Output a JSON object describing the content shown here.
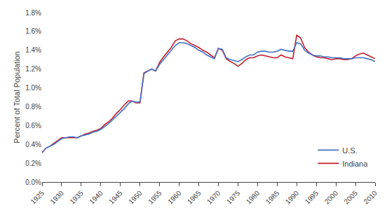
{
  "chart_data": {
    "type": "line",
    "x": [
      1925,
      1926,
      1927,
      1928,
      1929,
      1930,
      1931,
      1932,
      1933,
      1934,
      1935,
      1936,
      1937,
      1938,
      1939,
      1940,
      1941,
      1942,
      1943,
      1944,
      1945,
      1946,
      1947,
      1948,
      1949,
      1950,
      1951,
      1952,
      1953,
      1954,
      1955,
      1956,
      1957,
      1958,
      1959,
      1960,
      1961,
      1962,
      1963,
      1964,
      1965,
      1966,
      1967,
      1968,
      1969,
      1970,
      1971,
      1972,
      1973,
      1974,
      1975,
      1976,
      1977,
      1978,
      1979,
      1980,
      1981,
      1982,
      1983,
      1984,
      1985,
      1986,
      1987,
      1988,
      1989,
      1990,
      1991,
      1992,
      1993,
      1994,
      1995,
      1996,
      1997,
      1998,
      1999,
      2000,
      2001,
      2002,
      2003,
      2004,
      2005,
      2006,
      2007,
      2008,
      2009,
      2010
    ],
    "series": [
      {
        "name": "U.S.",
        "color": "#4472C4",
        "values": [
          0.0031,
          0.0036,
          0.0038,
          0.004,
          0.0043,
          0.0046,
          0.0047,
          0.0048,
          0.0048,
          0.0047,
          0.0049,
          0.005,
          0.0051,
          0.0053,
          0.0054,
          0.0056,
          0.0059,
          0.0062,
          0.0066,
          0.007,
          0.0074,
          0.0078,
          0.0083,
          0.0086,
          0.0085,
          0.0085,
          0.0115,
          0.0118,
          0.012,
          0.0118,
          0.0125,
          0.013,
          0.0135,
          0.014,
          0.0145,
          0.0148,
          0.0148,
          0.0147,
          0.0145,
          0.0143,
          0.014,
          0.0138,
          0.0135,
          0.0133,
          0.0131,
          0.0142,
          0.0141,
          0.0132,
          0.013,
          0.0129,
          0.0128,
          0.013,
          0.0133,
          0.0135,
          0.0135,
          0.0138,
          0.0139,
          0.0139,
          0.0138,
          0.0138,
          0.0139,
          0.0141,
          0.014,
          0.0139,
          0.0139,
          0.0148,
          0.0147,
          0.014,
          0.0137,
          0.0135,
          0.0134,
          0.0134,
          0.0133,
          0.0133,
          0.0132,
          0.0132,
          0.0132,
          0.0131,
          0.0131,
          0.0131,
          0.0132,
          0.0132,
          0.0132,
          0.0131,
          0.013,
          0.0128
        ]
      },
      {
        "name": "Indiana",
        "color": "#BE1E2D",
        "values": [
          0.0031,
          0.0036,
          0.0038,
          0.0041,
          0.0044,
          0.0047,
          0.0047,
          0.0047,
          0.0047,
          0.0047,
          0.0049,
          0.0051,
          0.0052,
          0.0054,
          0.0055,
          0.0057,
          0.0061,
          0.0064,
          0.0068,
          0.0073,
          0.0077,
          0.0082,
          0.0086,
          0.0086,
          0.0084,
          0.0084,
          0.0116,
          0.0118,
          0.012,
          0.0118,
          0.0127,
          0.0133,
          0.0138,
          0.0143,
          0.015,
          0.0152,
          0.0152,
          0.015,
          0.0147,
          0.0145,
          0.0143,
          0.014,
          0.0138,
          0.0135,
          0.0132,
          0.0142,
          0.014,
          0.0131,
          0.0128,
          0.0126,
          0.0123,
          0.0126,
          0.013,
          0.0132,
          0.0132,
          0.0134,
          0.0135,
          0.0134,
          0.0133,
          0.0132,
          0.0132,
          0.0135,
          0.0133,
          0.0132,
          0.0131,
          0.0156,
          0.0153,
          0.0143,
          0.0138,
          0.0135,
          0.0133,
          0.0132,
          0.0132,
          0.0131,
          0.013,
          0.0131,
          0.0131,
          0.013,
          0.013,
          0.0131,
          0.0134,
          0.0136,
          0.0137,
          0.0135,
          0.0133,
          0.0131
        ]
      }
    ],
    "ylabel": "Percent of Total Population",
    "xlim": [
      1925,
      2010
    ],
    "xticks": [
      1925,
      1930,
      1935,
      1940,
      1945,
      1950,
      1955,
      1960,
      1965,
      1970,
      1975,
      1980,
      1985,
      1990,
      1995,
      2000,
      2005,
      2010
    ],
    "ylim": [
      0.0,
      0.018
    ],
    "yticks": [
      {
        "value": 0.0,
        "label": "0.0%"
      },
      {
        "value": 0.002,
        "label": "0.2%"
      },
      {
        "value": 0.004,
        "label": "0.4%"
      },
      {
        "value": 0.006,
        "label": "0.6%"
      },
      {
        "value": 0.008,
        "label": "0.8%"
      },
      {
        "value": 0.01,
        "label": "1.0%"
      },
      {
        "value": 0.012,
        "label": "1.2%"
      },
      {
        "value": 0.014,
        "label": "1.4%"
      },
      {
        "value": 0.016,
        "label": "1.6%"
      },
      {
        "value": 0.018,
        "label": "1.8%"
      }
    ],
    "legend": "lower right",
    "grid": false
  }
}
